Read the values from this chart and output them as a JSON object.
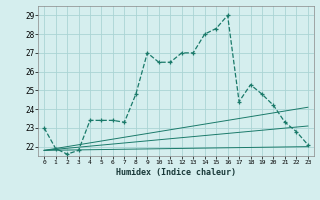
{
  "xlabel": "Humidex (Indice chaleur)",
  "x_ticks": [
    0,
    1,
    2,
    3,
    4,
    5,
    6,
    7,
    8,
    9,
    10,
    11,
    12,
    13,
    14,
    15,
    16,
    17,
    18,
    19,
    20,
    21,
    22,
    23
  ],
  "ylim": [
    21.5,
    29.5
  ],
  "xlim": [
    -0.5,
    23.5
  ],
  "yticks": [
    22,
    23,
    24,
    25,
    26,
    27,
    28,
    29
  ],
  "background_color": "#d5eeee",
  "grid_color": "#aad4d4",
  "line_color": "#1a7a6a",
  "series": {
    "main": {
      "x": [
        0,
        1,
        2,
        3,
        4,
        5,
        6,
        7,
        8,
        9,
        10,
        11,
        12,
        13,
        14,
        15,
        16,
        17,
        18,
        19,
        20,
        21,
        22,
        23
      ],
      "y": [
        23.0,
        21.9,
        21.6,
        21.8,
        23.4,
        23.4,
        23.4,
        23.3,
        24.8,
        27.0,
        26.5,
        26.5,
        27.0,
        27.0,
        28.0,
        28.3,
        29.0,
        24.4,
        25.3,
        24.8,
        24.2,
        23.3,
        22.8,
        22.1
      ]
    },
    "linear1": {
      "x": [
        0,
        23
      ],
      "y": [
        21.8,
        24.1
      ]
    },
    "linear2": {
      "x": [
        0,
        23
      ],
      "y": [
        21.8,
        23.1
      ]
    },
    "linear3": {
      "x": [
        0,
        23
      ],
      "y": [
        21.8,
        22.0
      ]
    }
  }
}
